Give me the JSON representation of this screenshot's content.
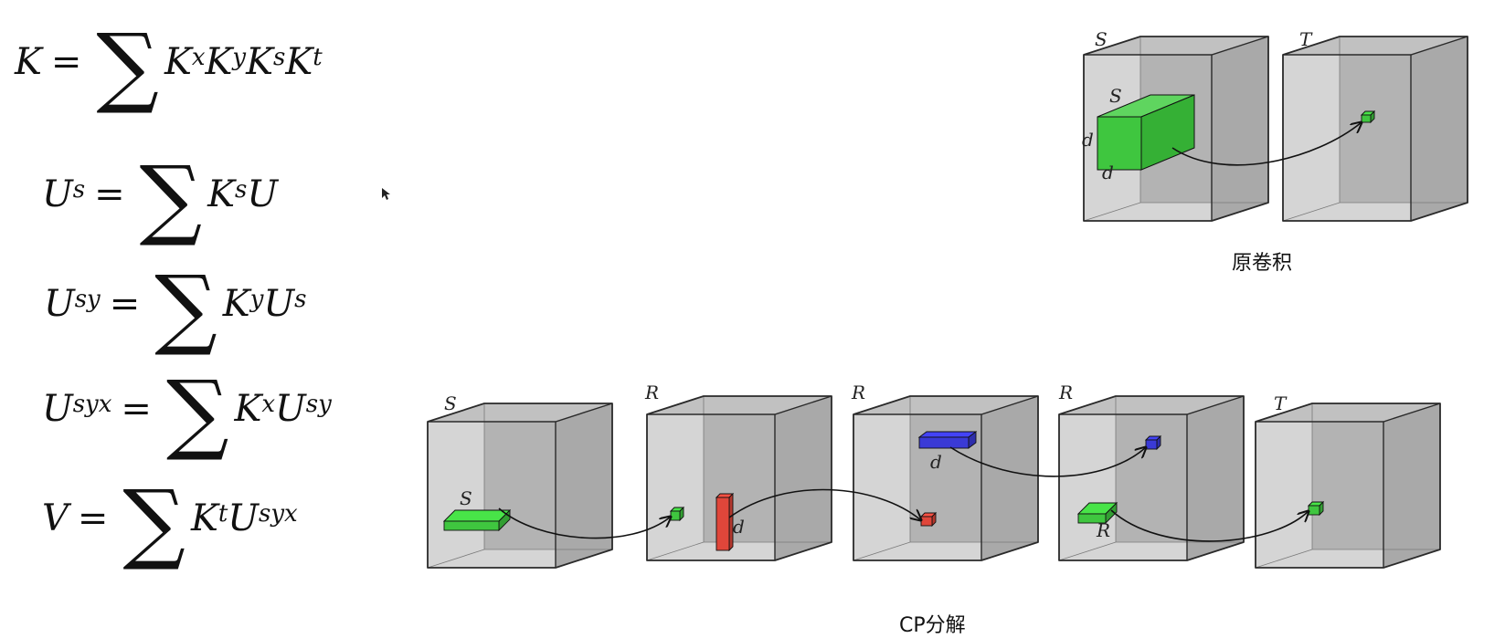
{
  "equations": [
    {
      "lhs_base": "K",
      "lhs_sup": "",
      "rhs": [
        {
          "b": "K",
          "s": "x"
        },
        {
          "b": "K",
          "s": "y"
        },
        {
          "b": "K",
          "s": "s"
        },
        {
          "b": "K",
          "s": "t"
        }
      ]
    },
    {
      "lhs_base": "U",
      "lhs_sup": "s",
      "rhs": [
        {
          "b": "K",
          "s": "s"
        },
        {
          "b": "U",
          "s": ""
        }
      ]
    },
    {
      "lhs_base": "U",
      "lhs_sup": "sy",
      "rhs": [
        {
          "b": "K",
          "s": "y"
        },
        {
          "b": "U",
          "s": "s"
        }
      ]
    },
    {
      "lhs_base": "U",
      "lhs_sup": "syx",
      "rhs": [
        {
          "b": "K",
          "s": "x"
        },
        {
          "b": "U",
          "s": "sy"
        }
      ]
    },
    {
      "lhs_base": "V",
      "lhs_sup": "",
      "rhs": [
        {
          "b": "K",
          "s": "t"
        },
        {
          "b": "U",
          "s": "syx"
        }
      ]
    }
  ],
  "sum_symbol": "∑",
  "equals": "=",
  "top_diagram": {
    "caption": "原卷积",
    "labels": {
      "box1": "S",
      "box2": "T",
      "kernel_top": "S",
      "kernel_left": "d",
      "kernel_bottom": "d"
    }
  },
  "bottom_diagram": {
    "caption": "CP分解",
    "labels": {
      "box1": "S",
      "box2": "R",
      "box3": "R",
      "box4": "R",
      "box5": "T",
      "green_bar": "S",
      "red_bar": "d",
      "blue_bar": "d",
      "green_bar2": "R"
    }
  },
  "colors": {
    "box_fill": "#b3b3b3",
    "box_stroke": "#2a2a2a",
    "green": "#3fc63f",
    "red": "#e0463a",
    "blue": "#3a3ad6"
  }
}
